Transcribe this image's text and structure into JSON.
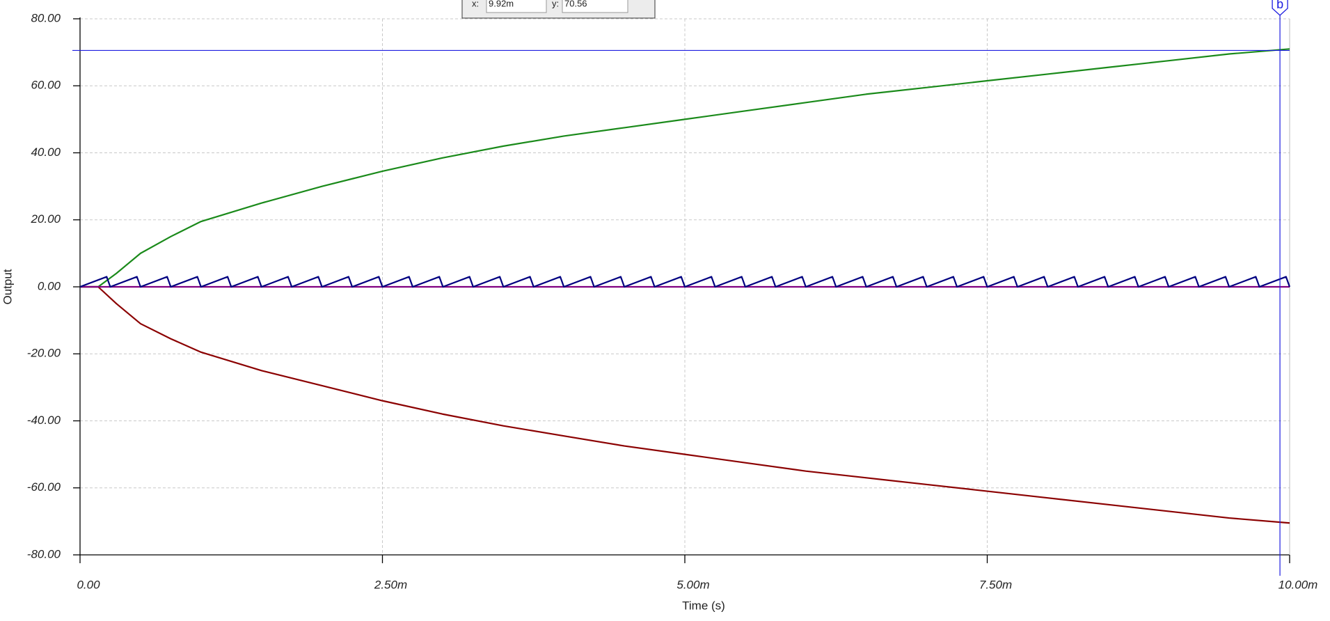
{
  "chart_data": {
    "type": "line",
    "x_label": "Time (s)",
    "y_label": "Output",
    "xlim": [
      0,
      0.01
    ],
    "xticks": [
      {
        "value": 0,
        "label": "0.00"
      },
      {
        "value": 0.0025,
        "label": "2.50m"
      },
      {
        "value": 0.005,
        "label": "5.00m"
      },
      {
        "value": 0.0075,
        "label": "7.50m"
      },
      {
        "value": 0.01,
        "label": "10.00m"
      }
    ],
    "ylim": [
      -80,
      80
    ],
    "yticks": [
      {
        "value": -80,
        "label": "-80.00"
      },
      {
        "value": -60,
        "label": "-60.00"
      },
      {
        "value": -40,
        "label": "-40.00"
      },
      {
        "value": -20,
        "label": "-20.00"
      },
      {
        "value": 0,
        "label": "0.00"
      },
      {
        "value": 20,
        "label": "20.00"
      },
      {
        "value": 40,
        "label": "40.00"
      },
      {
        "value": 60,
        "label": "60.00"
      },
      {
        "value": 80,
        "label": "80.00"
      }
    ],
    "grid": true,
    "series": [
      {
        "color": "#1a8a1a",
        "x": [
          0,
          0.00015,
          0.0003,
          0.0005,
          0.00075,
          0.001,
          0.0015,
          0.002,
          0.0025,
          0.003,
          0.0035,
          0.004,
          0.0045,
          0.005,
          0.0055,
          0.006,
          0.0065,
          0.007,
          0.0075,
          0.008,
          0.0085,
          0.009,
          0.0095,
          0.01
        ],
        "values": [
          0,
          0,
          4,
          10,
          15,
          19.5,
          25,
          30,
          34.5,
          38.5,
          42,
          45,
          47.5,
          50,
          52.5,
          55,
          57.5,
          59.5,
          61.5,
          63.5,
          65.5,
          67.5,
          69.5,
          71
        ]
      },
      {
        "color": "#8b0000",
        "x": [
          0,
          0.00015,
          0.0003,
          0.0005,
          0.00075,
          0.001,
          0.0015,
          0.002,
          0.0025,
          0.003,
          0.0035,
          0.004,
          0.0045,
          0.005,
          0.0055,
          0.006,
          0.0065,
          0.007,
          0.0075,
          0.008,
          0.0085,
          0.009,
          0.0095,
          0.01
        ],
        "values": [
          0,
          0,
          -5,
          -11,
          -15.5,
          -19.5,
          -25,
          -29.5,
          -34,
          -38,
          -41.5,
          -44.5,
          -47.5,
          -50,
          -52.5,
          -55,
          -57,
          -59,
          -61,
          -63,
          -65,
          -67,
          -69,
          -70.5
        ]
      },
      {
        "color": "#800080",
        "x": [
          0,
          0.01
        ],
        "values": [
          0,
          0
        ]
      },
      {
        "color": "#000080",
        "x": [
          0,
          0.00022,
          0.00025,
          0.00047,
          0.0005,
          0.00072,
          0.00075,
          0.00097,
          0.001,
          0.00122,
          0.00125,
          0.00147,
          0.0015,
          0.00172,
          0.00175,
          0.00197,
          0.002,
          0.00222,
          0.00225,
          0.00247,
          0.0025,
          0.00272,
          0.00275,
          0.00297,
          0.003,
          0.00322,
          0.00325,
          0.00347,
          0.0035,
          0.00372,
          0.00375,
          0.00397,
          0.004,
          0.00422,
          0.00425,
          0.00447,
          0.0045,
          0.00472,
          0.00475,
          0.00497,
          0.005,
          0.00522,
          0.00525,
          0.00547,
          0.0055,
          0.00572,
          0.00575,
          0.00597,
          0.006,
          0.00622,
          0.00625,
          0.00647,
          0.0065,
          0.00672,
          0.00675,
          0.00697,
          0.007,
          0.00722,
          0.00725,
          0.00747,
          0.0075,
          0.00772,
          0.00775,
          0.00797,
          0.008,
          0.00822,
          0.00825,
          0.00847,
          0.0085,
          0.00872,
          0.00875,
          0.00897,
          0.009,
          0.00922,
          0.00925,
          0.00947,
          0.0095,
          0.00972,
          0.00975,
          0.00997,
          0.01
        ],
        "values": [
          0,
          3,
          0,
          3,
          0,
          3,
          0,
          3,
          0,
          3,
          0,
          3,
          0,
          3,
          0,
          3,
          0,
          3,
          0,
          3,
          0,
          3,
          0,
          3,
          0,
          3,
          0,
          3,
          0,
          3,
          0,
          3,
          0,
          3,
          0,
          3,
          0,
          3,
          0,
          3,
          0,
          3,
          0,
          3,
          0,
          3,
          0,
          3,
          0,
          3,
          0,
          3,
          0,
          3,
          0,
          3,
          0,
          3,
          0,
          3,
          0,
          3,
          0,
          3,
          0,
          3,
          0,
          3,
          0,
          3,
          0,
          3,
          0,
          3,
          0,
          3,
          0,
          3,
          0,
          3,
          0
        ]
      }
    ],
    "cursor": {
      "label": "b",
      "x": 0.00992,
      "y": 70.56,
      "x_name": "x:",
      "x_text": "9.92m",
      "y_name": "y:",
      "y_text": "70.56",
      "color": "#1c1ce0"
    }
  }
}
